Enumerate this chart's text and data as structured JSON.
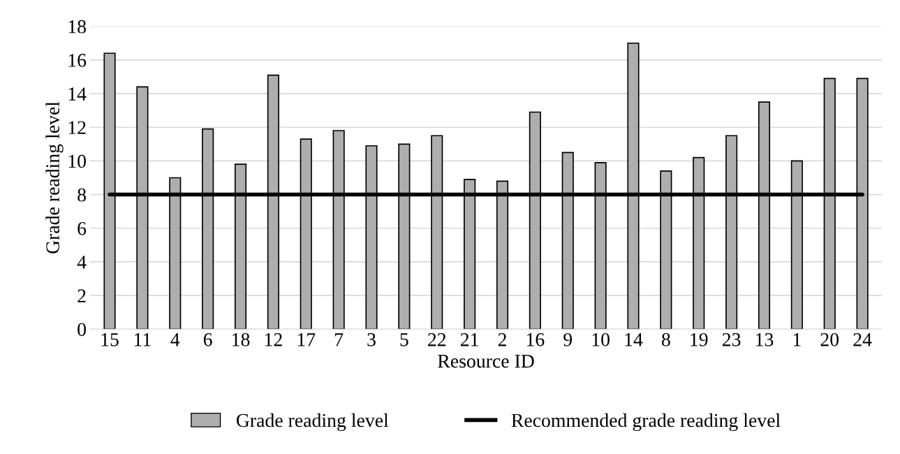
{
  "chart_data": {
    "type": "bar",
    "xlabel": "Resource ID",
    "ylabel": "Grade reading level",
    "categories": [
      "15",
      "11",
      "4",
      "6",
      "18",
      "12",
      "17",
      "7",
      "3",
      "5",
      "22",
      "21",
      "2",
      "16",
      "9",
      "10",
      "14",
      "8",
      "19",
      "23",
      "13",
      "1",
      "20",
      "24"
    ],
    "series": [
      {
        "name": "Grade reading level",
        "color": "#aeaeae",
        "values": [
          16.4,
          14.4,
          9.0,
          11.9,
          9.8,
          15.1,
          11.3,
          11.8,
          10.9,
          11.0,
          11.5,
          8.9,
          8.8,
          12.9,
          10.5,
          9.9,
          17.0,
          9.4,
          10.2,
          11.5,
          13.5,
          10.0,
          14.9,
          14.9
        ]
      },
      {
        "name": "Recommended grade reading level",
        "type": "line",
        "color": "#000000",
        "values": [
          8,
          8,
          8,
          8,
          8,
          8,
          8,
          8,
          8,
          8,
          8,
          8,
          8,
          8,
          8,
          8,
          8,
          8,
          8,
          8,
          8,
          8,
          8,
          8
        ]
      }
    ],
    "ylim": [
      0,
      18
    ],
    "yticks": [
      0,
      2,
      4,
      6,
      8,
      10,
      12,
      14,
      16,
      18
    ],
    "grid": "y",
    "legend": "bottom",
    "marker": "none",
    "line_style": "solid"
  }
}
